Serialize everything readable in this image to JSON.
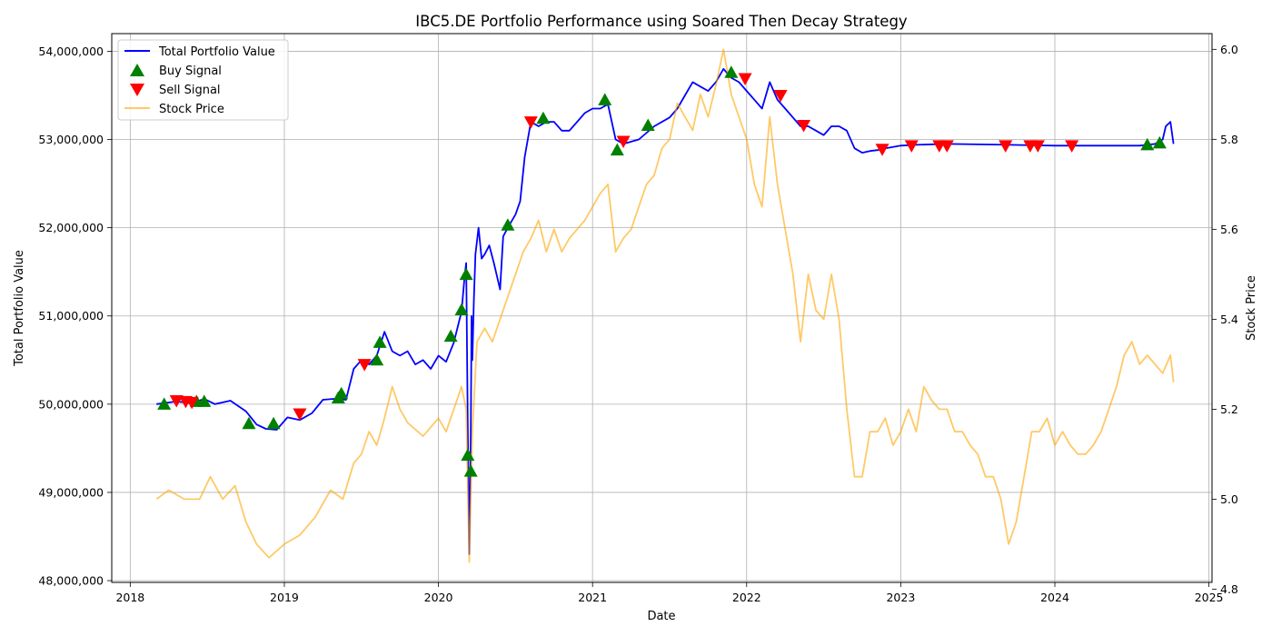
{
  "chart_data": {
    "type": "line",
    "title": "IBC5.DE Portfolio Performance using Soared Then Decay Strategy",
    "xlabel": "Date",
    "ylabel": "Total Portfolio Value",
    "y2label": "Stock Price",
    "xlim": [
      2017.88,
      2025.02
    ],
    "ylim": [
      47980000,
      54200000
    ],
    "y2lim": [
      4.815,
      6.035
    ],
    "x_ticks": [
      2018,
      2019,
      2020,
      2021,
      2022,
      2023,
      2024,
      2025
    ],
    "x_tick_labels": [
      "2018",
      "2019",
      "2020",
      "2021",
      "2022",
      "2023",
      "2024",
      "2025"
    ],
    "y_ticks": [
      48000000,
      49000000,
      50000000,
      51000000,
      52000000,
      53000000,
      54000000
    ],
    "y_tick_labels": [
      "48,000,000",
      "49,000,000",
      "50,000,000",
      "51,000,000",
      "52,000,000",
      "53,000,000",
      "54,000,000"
    ],
    "y2_ticks": [
      4.8,
      5.0,
      5.2,
      5.4,
      5.6,
      5.8,
      6.0
    ],
    "y2_tick_labels": [
      "4.8",
      "5.0",
      "5.2",
      "5.4",
      "5.6",
      "5.8",
      "6.0"
    ],
    "grid": true,
    "legend_position": "top-left",
    "colors": {
      "portfolio": "#0000ff",
      "price": "#ffa500",
      "buy": "#008000",
      "sell": "#ff0000"
    },
    "series": [
      {
        "name": "Total Portfolio Value",
        "axis": "left",
        "x": [
          2018.17,
          2018.3,
          2018.4,
          2018.48,
          2018.55,
          2018.65,
          2018.75,
          2018.82,
          2018.88,
          2018.95,
          2019.02,
          2019.1,
          2019.18,
          2019.25,
          2019.32,
          2019.4,
          2019.45,
          2019.5,
          2019.55,
          2019.6,
          2019.65,
          2019.7,
          2019.75,
          2019.8,
          2019.85,
          2019.9,
          2019.95,
          2020.0,
          2020.05,
          2020.1,
          2020.15,
          2020.17,
          2020.18,
          2020.19,
          2020.2,
          2020.21,
          2020.215,
          2020.22,
          2020.23,
          2020.24,
          2020.26,
          2020.28,
          2020.3,
          2020.33,
          2020.36,
          2020.4,
          2020.42,
          2020.45,
          2020.5,
          2020.53,
          2020.56,
          2020.6,
          2020.65,
          2020.7,
          2020.75,
          2020.8,
          2020.85,
          2020.9,
          2020.95,
          2021.0,
          2021.05,
          2021.1,
          2021.15,
          2021.2,
          2021.3,
          2021.4,
          2021.5,
          2021.55,
          2021.6,
          2021.65,
          2021.7,
          2021.75,
          2021.8,
          2021.85,
          2021.9,
          2021.95,
          2022.0,
          2022.05,
          2022.1,
          2022.15,
          2022.2,
          2022.25,
          2022.3,
          2022.35,
          2022.4,
          2022.45,
          2022.5,
          2022.55,
          2022.6,
          2022.65,
          2022.7,
          2022.75,
          2022.8,
          2022.85,
          2022.9,
          2023.0,
          2023.1,
          2023.3,
          2023.7,
          2024.0,
          2024.3,
          2024.55,
          2024.6,
          2024.65,
          2024.7,
          2024.72,
          2024.75,
          2024.77
        ],
        "values": [
          50000000,
          50030000,
          50010000,
          50060000,
          50000000,
          50040000,
          49920000,
          49770000,
          49720000,
          49710000,
          49850000,
          49820000,
          49900000,
          50050000,
          50060000,
          50050000,
          50400000,
          50500000,
          50450000,
          50550000,
          50820000,
          50600000,
          50550000,
          50600000,
          50450000,
          50500000,
          50400000,
          50550000,
          50480000,
          50700000,
          51050000,
          51450000,
          51600000,
          49800000,
          48300000,
          49700000,
          51000000,
          50500000,
          51200000,
          51700000,
          52000000,
          51650000,
          51700000,
          51800000,
          51600000,
          51300000,
          51900000,
          52000000,
          52150000,
          52300000,
          52800000,
          53200000,
          53150000,
          53200000,
          53200000,
          53100000,
          53100000,
          53200000,
          53300000,
          53350000,
          53350000,
          53400000,
          53000000,
          52950000,
          53000000,
          53150000,
          53250000,
          53350000,
          53500000,
          53650000,
          53600000,
          53550000,
          53650000,
          53800000,
          53700000,
          53650000,
          53550000,
          53450000,
          53350000,
          53650000,
          53450000,
          53350000,
          53250000,
          53150000,
          53150000,
          53100000,
          53050000,
          53150000,
          53150000,
          53100000,
          52900000,
          52850000,
          52870000,
          52880000,
          52900000,
          52930000,
          52940000,
          52950000,
          52940000,
          52930000,
          52930000,
          52930000,
          52940000,
          52950000,
          53000000,
          53150000,
          53200000,
          52950000
        ]
      },
      {
        "name": "Stock Price",
        "axis": "right",
        "x": [
          2018.17,
          2018.25,
          2018.35,
          2018.45,
          2018.52,
          2018.6,
          2018.68,
          2018.75,
          2018.82,
          2018.9,
          2019.0,
          2019.1,
          2019.2,
          2019.3,
          2019.38,
          2019.45,
          2019.5,
          2019.55,
          2019.6,
          2019.65,
          2019.7,
          2019.75,
          2019.8,
          2019.9,
          2020.0,
          2020.05,
          2020.1,
          2020.15,
          2020.18,
          2020.2,
          2020.22,
          2020.25,
          2020.3,
          2020.35,
          2020.4,
          2020.45,
          2020.5,
          2020.55,
          2020.6,
          2020.65,
          2020.7,
          2020.75,
          2020.8,
          2020.85,
          2020.9,
          2020.95,
          2021.0,
          2021.05,
          2021.1,
          2021.15,
          2021.2,
          2021.25,
          2021.3,
          2021.35,
          2021.4,
          2021.45,
          2021.5,
          2021.55,
          2021.6,
          2021.65,
          2021.7,
          2021.75,
          2021.8,
          2021.85,
          2021.9,
          2021.95,
          2022.0,
          2022.05,
          2022.1,
          2022.15,
          2022.2,
          2022.25,
          2022.3,
          2022.35,
          2022.4,
          2022.45,
          2022.5,
          2022.55,
          2022.6,
          2022.65,
          2022.7,
          2022.75,
          2022.8,
          2022.85,
          2022.9,
          2022.95,
          2023.0,
          2023.05,
          2023.1,
          2023.15,
          2023.2,
          2023.25,
          2023.3,
          2023.35,
          2023.4,
          2023.45,
          2023.5,
          2023.55,
          2023.6,
          2023.65,
          2023.7,
          2023.75,
          2023.8,
          2023.85,
          2023.9,
          2023.95,
          2024.0,
          2024.05,
          2024.1,
          2024.15,
          2024.2,
          2024.25,
          2024.3,
          2024.35,
          2024.4,
          2024.45,
          2024.5,
          2024.55,
          2024.6,
          2024.65,
          2024.7,
          2024.75,
          2024.77
        ],
        "values": [
          5.0,
          5.02,
          5.0,
          5.0,
          5.05,
          5.0,
          5.03,
          4.95,
          4.9,
          4.87,
          4.9,
          4.92,
          4.96,
          5.02,
          5.0,
          5.08,
          5.1,
          5.15,
          5.12,
          5.18,
          5.25,
          5.2,
          5.17,
          5.14,
          5.18,
          5.15,
          5.2,
          5.25,
          5.2,
          4.86,
          5.15,
          5.35,
          5.38,
          5.35,
          5.4,
          5.45,
          5.5,
          5.55,
          5.58,
          5.62,
          5.55,
          5.6,
          5.55,
          5.58,
          5.6,
          5.62,
          5.65,
          5.68,
          5.7,
          5.55,
          5.58,
          5.6,
          5.65,
          5.7,
          5.72,
          5.78,
          5.8,
          5.88,
          5.85,
          5.82,
          5.9,
          5.85,
          5.92,
          6.0,
          5.9,
          5.85,
          5.8,
          5.7,
          5.65,
          5.85,
          5.7,
          5.6,
          5.5,
          5.35,
          5.5,
          5.42,
          5.4,
          5.5,
          5.4,
          5.2,
          5.05,
          5.05,
          5.15,
          5.15,
          5.18,
          5.12,
          5.15,
          5.2,
          5.15,
          5.25,
          5.22,
          5.2,
          5.2,
          5.15,
          5.15,
          5.12,
          5.1,
          5.05,
          5.05,
          5.0,
          4.9,
          4.95,
          5.05,
          5.15,
          5.15,
          5.18,
          5.12,
          5.15,
          5.12,
          5.1,
          5.1,
          5.12,
          5.15,
          5.2,
          5.25,
          5.32,
          5.35,
          5.3,
          5.32,
          5.3,
          5.28,
          5.32,
          5.26
        ]
      }
    ],
    "buy_signals": {
      "name": "Buy Signal",
      "x": [
        2018.22,
        2018.43,
        2018.48,
        2018.77,
        2018.93,
        2019.35,
        2019.37,
        2019.6,
        2019.62,
        2020.08,
        2020.15,
        2020.18,
        2020.19,
        2020.21,
        2020.45,
        2020.68,
        2021.08,
        2021.16,
        2021.36,
        2021.9,
        2024.6,
        2024.68
      ],
      "values": [
        50000000,
        50030000,
        50030000,
        49780000,
        49780000,
        50070000,
        50120000,
        50500000,
        50700000,
        50770000,
        51070000,
        51470000,
        49420000,
        49240000,
        52030000,
        53240000,
        53450000,
        52880000,
        53160000,
        53760000,
        52940000,
        52960000
      ]
    },
    "sell_signals": {
      "name": "Sell Signal",
      "x": [
        2018.3,
        2018.36,
        2018.4,
        2019.1,
        2019.52,
        2020.6,
        2021.2,
        2021.99,
        2022.22,
        2022.37,
        2022.88,
        2023.07,
        2023.25,
        2023.3,
        2023.68,
        2023.84,
        2023.89,
        2024.11
      ],
      "values": [
        50040000,
        50030000,
        50020000,
        49890000,
        50450000,
        53200000,
        52980000,
        53690000,
        53500000,
        53160000,
        52890000,
        52930000,
        52930000,
        52930000,
        52930000,
        52930000,
        52930000,
        52930000
      ]
    }
  }
}
